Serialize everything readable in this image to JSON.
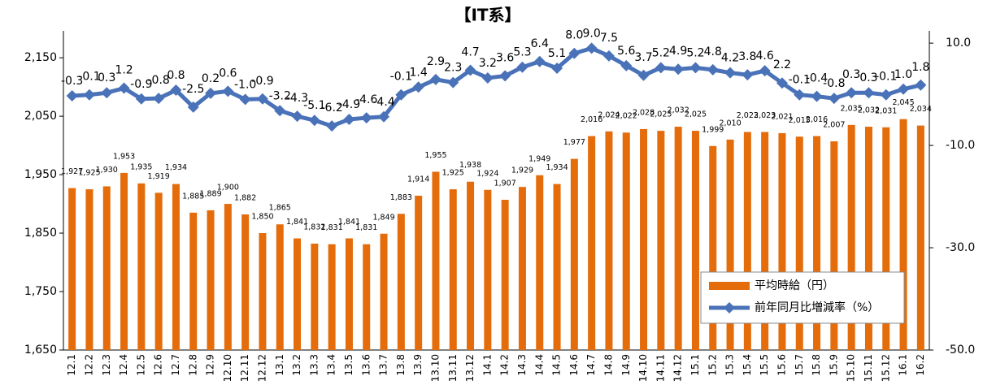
{
  "chart_data": {
    "type": "bar_line",
    "title": "【IT系】",
    "categories": [
      "12.1",
      "12.2",
      "12.3",
      "12.4",
      "12.5",
      "12.6",
      "12.7",
      "12.8",
      "12.9",
      "12.10",
      "12.11",
      "12.12",
      "13.1",
      "13.2",
      "13.3",
      "13.4",
      "13.5",
      "13.6",
      "13.7",
      "13.8",
      "13.9",
      "13.10",
      "13.11",
      "13.12",
      "14.1",
      "14.2",
      "14.3",
      "14.4",
      "14.5",
      "14.6",
      "14.7",
      "14.8",
      "14.9",
      "14.10",
      "14.11",
      "14.12",
      "15.1",
      "15.2",
      "15.3",
      "15.4",
      "15.5",
      "15.6",
      "15.7",
      "15.8",
      "15.9",
      "15.10",
      "15.11",
      "15.12",
      "16.1",
      "16.2"
    ],
    "series": [
      {
        "name": "平均時給（円）",
        "type": "bar",
        "color": "#e46c0a",
        "values": [
          1927,
          1925,
          1930,
          1953,
          1935,
          1919,
          1934,
          1885,
          1889,
          1900,
          1882,
          1850,
          1865,
          1841,
          1832,
          1831,
          1841,
          1831,
          1849,
          1883,
          1914,
          1955,
          1925,
          1938,
          1924,
          1907,
          1929,
          1949,
          1934,
          1977,
          2016,
          2024,
          2022,
          2028,
          2025,
          2032,
          2025,
          1999,
          2010,
          2023,
          2023,
          2021,
          2015,
          2016,
          2007,
          2035,
          2032,
          2031,
          2045,
          2034
        ],
        "value_labels": [
          "1,927",
          "1,925",
          "1,930",
          "1,953",
          "1,935",
          "1,919",
          "1,934",
          "1,885",
          "1,889",
          "1,900",
          "1,882",
          "1,850",
          "1,865",
          "1,841",
          "1,832",
          "1,831",
          "1,841",
          "1,831",
          "1,849",
          "1,883",
          "1,914",
          "1,955",
          "1,925",
          "1,938",
          "1,924",
          "1,907",
          "1,929",
          "1,949",
          "1,934",
          "1,977",
          "2,016",
          "2,024",
          "2,022",
          "2,028",
          "2,025",
          "2,032",
          "2,025",
          "1,999",
          "2,010",
          "2,023",
          "2,023",
          "2,021",
          "2,015",
          "2,016",
          "2,007",
          "2,035",
          "2,032",
          "2,031",
          "2,045",
          "2,034"
        ]
      },
      {
        "name": "前年同月比増減率（%）",
        "type": "line",
        "axis": "y2",
        "color": "#4a72b8",
        "values": [
          -0.3,
          -0.1,
          0.3,
          1.2,
          -0.9,
          -0.8,
          0.8,
          -2.5,
          0.2,
          0.6,
          -1.0,
          -0.9,
          -3.2,
          -4.3,
          -5.1,
          -6.2,
          -4.9,
          -4.6,
          -4.4,
          -0.1,
          1.4,
          2.9,
          2.3,
          4.7,
          3.2,
          3.6,
          5.3,
          6.4,
          5.1,
          8.0,
          9.0,
          7.5,
          5.6,
          3.7,
          5.2,
          4.9,
          5.2,
          4.8,
          4.2,
          3.8,
          4.6,
          2.2,
          -0.1,
          -0.4,
          -0.8,
          0.3,
          0.3,
          -0.1,
          1.0,
          1.8
        ],
        "value_labels": [
          "-0.3",
          "-0.1",
          "0.3",
          "1.2",
          "-0.9",
          "-0.8",
          "0.8",
          "-2.5",
          "0.2",
          "0.6",
          "-1.0",
          "-0.9",
          "-3.2",
          "-4.3",
          "-5.1",
          "-6.2",
          "-4.9",
          "-4.6",
          "-4.4",
          "-0.1",
          "1.4",
          "2.9",
          "2.3",
          "4.7",
          "3.2",
          "3.6",
          "5.3",
          "6.4",
          "5.1",
          "8.0",
          "9.0",
          "7.5",
          "5.6",
          "3.7",
          "5.2",
          "4.9",
          "5.2",
          "4.8",
          "4.2",
          "3.8",
          "4.6",
          "2.2",
          "-0.1",
          "-0.4",
          "-0.8",
          "0.3",
          "0.3",
          "-0.1",
          "1.0",
          "1.8"
        ]
      }
    ],
    "ylim": [
      1650,
      2196
    ],
    "yticks": [
      {
        "value": 1650,
        "label": "1,650"
      },
      {
        "value": 1750,
        "label": "1,750"
      },
      {
        "value": 1850,
        "label": "1,850"
      },
      {
        "value": 1950,
        "label": "1,950"
      },
      {
        "value": 2050,
        "label": "2,050"
      },
      {
        "value": 2150,
        "label": "2,150"
      }
    ],
    "y2lim": [
      -50,
      12.4
    ],
    "y2ticks": [
      {
        "value": -50,
        "label": "-50.0"
      },
      {
        "value": -30,
        "label": "-30.0"
      },
      {
        "value": -10,
        "label": "-10.0"
      },
      {
        "value": 10,
        "label": "10.0"
      }
    ],
    "legend": "lower right"
  }
}
